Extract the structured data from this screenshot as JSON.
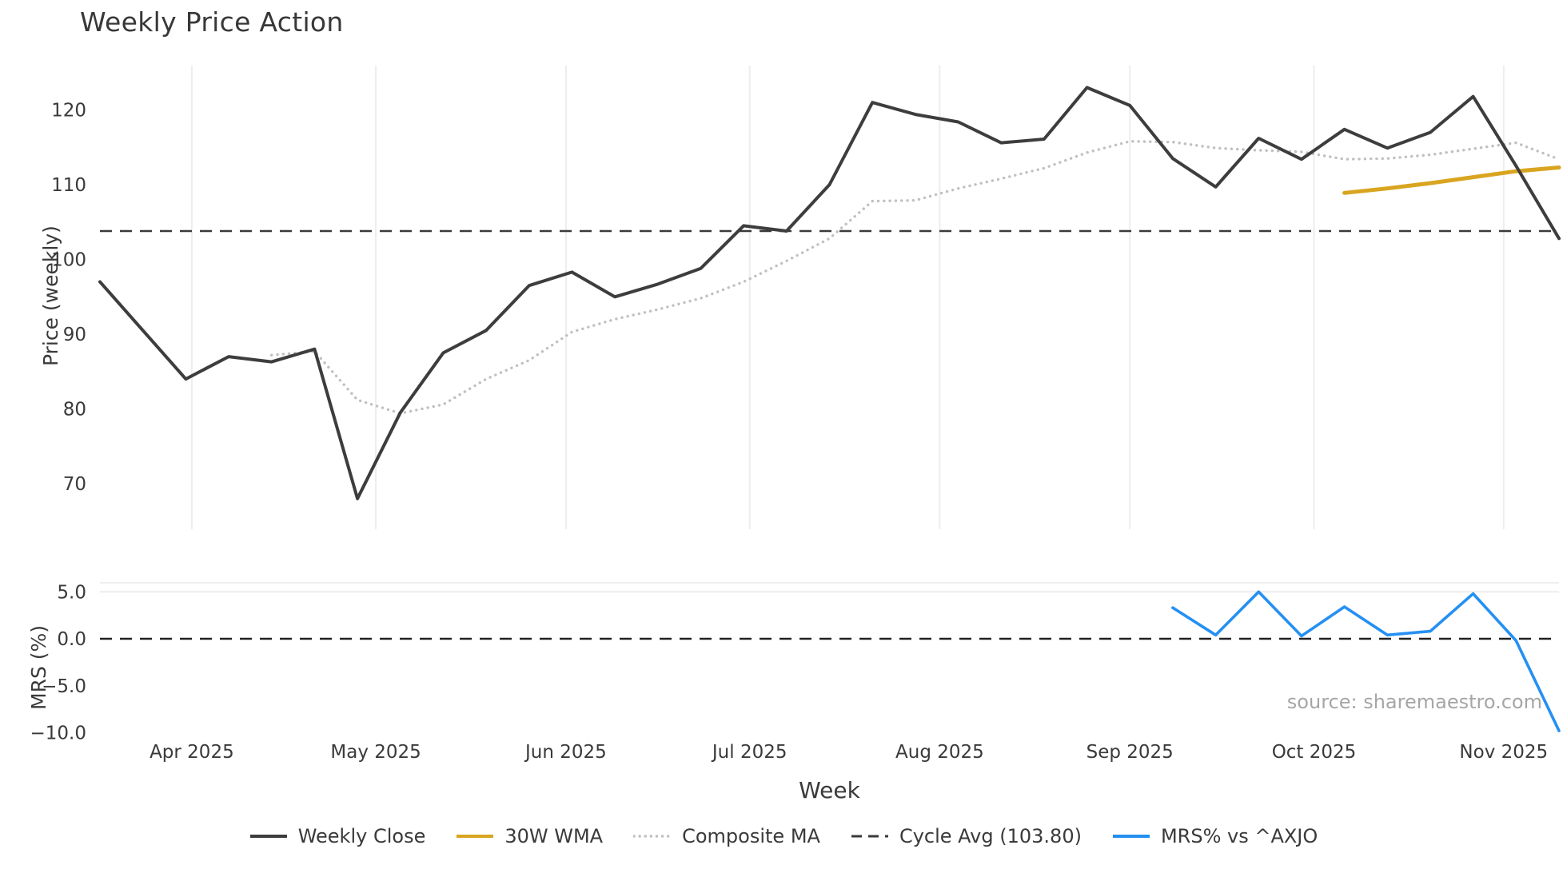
{
  "chart_data": {
    "type": "line",
    "title": "Weekly Price Action",
    "xlabel": "Week",
    "source": "source: sharemaestro.com",
    "grid": "vertical-month-lines-top-panel",
    "legend_position": "bottom-center",
    "x_ticks": [
      {
        "label": "Apr 2025",
        "week": 3.14
      },
      {
        "label": "May 2025",
        "week": 7.43
      },
      {
        "label": "Jun 2025",
        "week": 11.86
      },
      {
        "label": "Jul 2025",
        "week": 16.14
      },
      {
        "label": "Aug 2025",
        "week": 20.57
      },
      {
        "label": "Sep 2025",
        "week": 25.0
      },
      {
        "label": "Oct 2025",
        "week": 29.29
      },
      {
        "label": "Nov 2025",
        "week": 33.71
      }
    ],
    "panels": [
      {
        "name": "price",
        "ylabel": "Price (weekly)",
        "ylim": [
          64,
          126
        ],
        "yticks": [
          {
            "label": "120",
            "value": 120
          },
          {
            "label": "110",
            "value": 110
          },
          {
            "label": "100",
            "value": 100
          },
          {
            "label": "90",
            "value": 90
          },
          {
            "label": "80",
            "value": 80
          },
          {
            "label": "70",
            "value": 70
          }
        ],
        "series": [
          {
            "name": "Weekly Close",
            "type": "line",
            "style": "solid",
            "color": "#3d3d3d",
            "start_week": 1,
            "values": [
              97.0,
              90.5,
              84.0,
              87.0,
              86.3,
              88.0,
              68.0,
              79.5,
              87.5,
              90.5,
              96.5,
              98.3,
              95.0,
              96.7,
              98.8,
              104.5,
              103.8,
              110.0,
              121.0,
              119.4,
              118.4,
              115.6,
              116.1,
              123.0,
              120.6,
              113.5,
              109.7,
              116.2,
              113.4,
              117.4,
              114.9,
              117.0,
              121.8,
              112.5,
              102.8
            ]
          },
          {
            "name": "30W WMA",
            "type": "line",
            "style": "solid",
            "color": "#d9a520",
            "start_week": 30,
            "values": [
              108.9,
              109.5,
              110.2,
              111.0,
              111.8,
              112.3
            ]
          },
          {
            "name": "Composite MA",
            "type": "line",
            "style": "dotted",
            "color": "#c0c0c0",
            "start_week": 5,
            "values": [
              87.2,
              87.7,
              81.2,
              79.4,
              80.6,
              84.0,
              86.5,
              90.3,
              92.0,
              93.3,
              94.8,
              97.0,
              99.8,
              102.8,
              107.8,
              107.9,
              109.5,
              110.8,
              112.2,
              114.3,
              115.8,
              115.7,
              114.9,
              114.6,
              114.4,
              113.4,
              113.5,
              114.0,
              114.8,
              115.6,
              113.4
            ]
          },
          {
            "name": "Cycle Avg (103.80)",
            "type": "hline",
            "style": "dashed",
            "color": "#3a3a3a",
            "value": 103.8
          }
        ]
      },
      {
        "name": "mrs",
        "ylabel": "MRS (%)",
        "ylim": [
          -10.5,
          6.2
        ],
        "yticks": [
          {
            "label": "5.0",
            "value": 5
          },
          {
            "label": "0.0",
            "value": 0
          },
          {
            "label": "−5.0",
            "value": -5
          },
          {
            "label": "−10.0",
            "value": -10
          }
        ],
        "series": [
          {
            "name": "MRS% vs ^AXJO",
            "type": "line",
            "style": "solid",
            "color": "#2590f2",
            "start_week": 26,
            "values": [
              3.3,
              0.4,
              5.0,
              0.3,
              3.4,
              0.4,
              0.8,
              4.8,
              -0.2,
              -9.8
            ]
          },
          {
            "name": "Zero Line",
            "type": "hline",
            "style": "dashed",
            "color": "#222222",
            "value": 0
          }
        ]
      }
    ],
    "legend": [
      {
        "label": "Weekly Close",
        "color": "#3d3d3d",
        "style": "solid"
      },
      {
        "label": "30W WMA",
        "color": "#d9a520",
        "style": "solid"
      },
      {
        "label": "Composite MA",
        "color": "#c0c0c0",
        "style": "dotted"
      },
      {
        "label": "Cycle Avg (103.80)",
        "color": "#3a3a3a",
        "style": "dashed"
      },
      {
        "label": "MRS% vs ^AXJO",
        "color": "#2590f2",
        "style": "solid"
      }
    ]
  }
}
